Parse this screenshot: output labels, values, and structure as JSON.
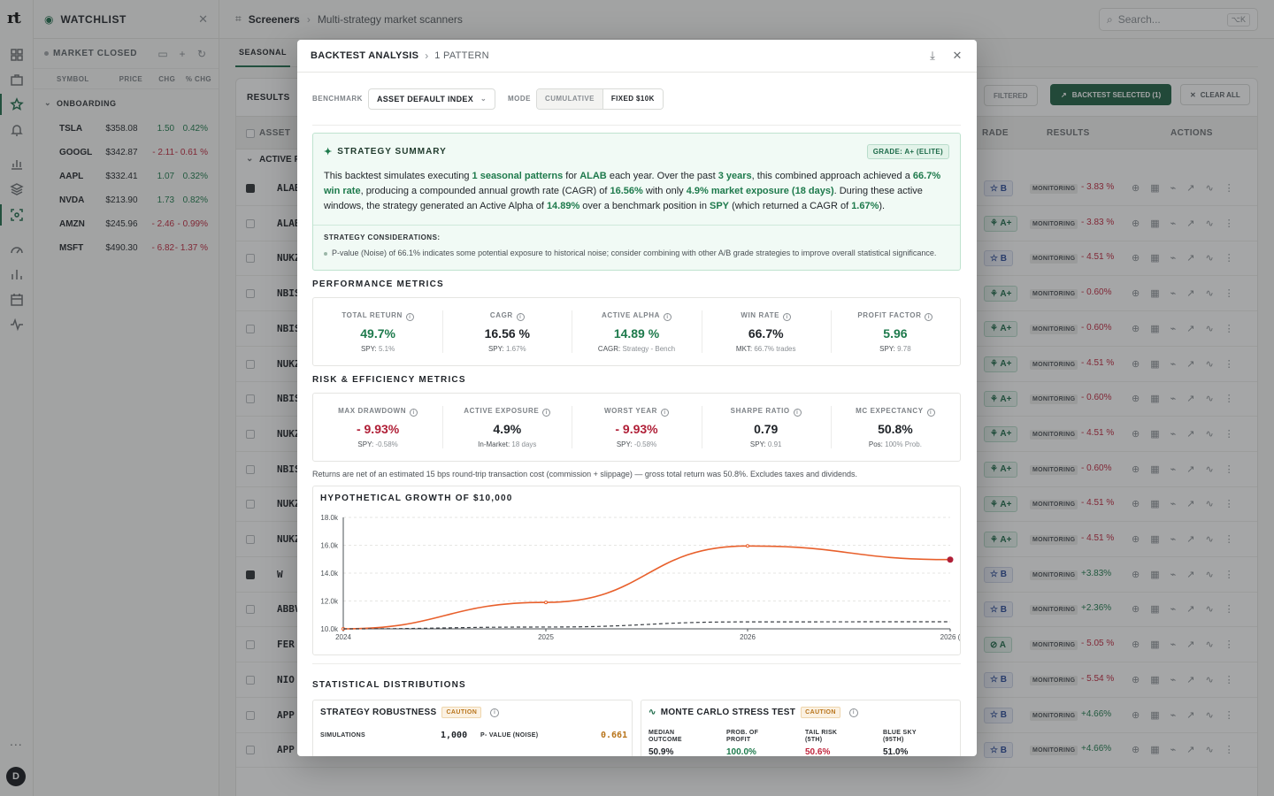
{
  "rail": {
    "logo": "rt",
    "avatar": "D",
    "more": "..."
  },
  "watchlist": {
    "title": "WATCHLIST",
    "status": "MARKET CLOSED",
    "columns": [
      "SYMBOL",
      "PRICE",
      "CHG",
      "% CHG"
    ],
    "group": "ONBOARDING",
    "rows": [
      {
        "symbol": "TSLA",
        "price": "$358.08",
        "chg": "1.50",
        "pct": "0.42%",
        "dir": "pos"
      },
      {
        "symbol": "GOOGL",
        "price": "$342.87",
        "chg": "- 2.11",
        "pct": "- 0.61 %",
        "dir": "neg"
      },
      {
        "symbol": "AAPL",
        "price": "$332.41",
        "chg": "1.07",
        "pct": "0.32%",
        "dir": "pos"
      },
      {
        "symbol": "NVDA",
        "price": "$213.90",
        "chg": "1.73",
        "pct": "0.82%",
        "dir": "pos"
      },
      {
        "symbol": "AMZN",
        "price": "$245.96",
        "chg": "- 2.46",
        "pct": "- 0.99%",
        "dir": "neg"
      },
      {
        "symbol": "MSFT",
        "price": "$490.30",
        "chg": "- 6.82",
        "pct": "- 1.37 %",
        "dir": "neg"
      }
    ]
  },
  "topbar": {
    "crumb1": "Screeners",
    "crumb2": "Multi-strategy market scanners",
    "search_placeholder": "Search...",
    "shortcut": "⌥K"
  },
  "main": {
    "tab": "SEASONAL",
    "results_label": "RESULTS",
    "filtered_label": "FILTERED",
    "backtest_label": "BACKTEST SELECTED (1)",
    "clear_label": "CLEAR ALL",
    "headers": {
      "asset": "ASSET",
      "grade": "RADE",
      "results": "RESULTS",
      "actions": "ACTIONS"
    },
    "group": "ACTIVE P",
    "rows": [
      {
        "ticker": "ALAB",
        "checked": true,
        "grade": "☆ B",
        "gtype": "b",
        "status": "MONITORING",
        "ret": "- 3.83 %",
        "dir": "neg"
      },
      {
        "ticker": "ALAB",
        "checked": false,
        "grade": "⚘ A+",
        "gtype": "a",
        "status": "MONITORING",
        "ret": "- 3.83 %",
        "dir": "neg"
      },
      {
        "ticker": "NUKZ",
        "checked": false,
        "grade": "☆ B",
        "gtype": "b",
        "status": "MONITORING",
        "ret": "- 4.51 %",
        "dir": "neg"
      },
      {
        "ticker": "NBIS",
        "checked": false,
        "grade": "⚘ A+",
        "gtype": "a",
        "status": "MONITORING",
        "ret": "- 0.60%",
        "dir": "neg"
      },
      {
        "ticker": "NBIS",
        "checked": false,
        "grade": "⚘ A+",
        "gtype": "a",
        "status": "MONITORING",
        "ret": "- 0.60%",
        "dir": "neg"
      },
      {
        "ticker": "NUKZ",
        "checked": false,
        "grade": "⚘ A+",
        "gtype": "a",
        "status": "MONITORING",
        "ret": "- 4.51 %",
        "dir": "neg"
      },
      {
        "ticker": "NBIS",
        "checked": false,
        "grade": "⚘ A+",
        "gtype": "a",
        "status": "MONITORING",
        "ret": "- 0.60%",
        "dir": "neg"
      },
      {
        "ticker": "NUKZ",
        "checked": false,
        "grade": "⚘ A+",
        "gtype": "a",
        "status": "MONITORING",
        "ret": "- 4.51 %",
        "dir": "neg"
      },
      {
        "ticker": "NBIS",
        "checked": false,
        "grade": "⚘ A+",
        "gtype": "a",
        "status": "MONITORING",
        "ret": "- 0.60%",
        "dir": "neg"
      },
      {
        "ticker": "NUKZ",
        "checked": false,
        "grade": "⚘ A+",
        "gtype": "a",
        "status": "MONITORING",
        "ret": "- 4.51 %",
        "dir": "neg"
      },
      {
        "ticker": "NUKZ",
        "checked": false,
        "grade": "⚘ A+",
        "gtype": "a",
        "status": "MONITORING",
        "ret": "- 4.51 %",
        "dir": "neg"
      },
      {
        "ticker": "W",
        "checked": true,
        "grade": "☆ B",
        "gtype": "b",
        "status": "MONITORING",
        "ret": "+3.83%",
        "dir": "pos"
      },
      {
        "ticker": "ABBV",
        "checked": false,
        "grade": "☆ B",
        "gtype": "b",
        "status": "MONITORING",
        "ret": "+2.36%",
        "dir": "pos"
      },
      {
        "ticker": "FER",
        "checked": false,
        "grade": "⊘ A",
        "gtype": "a",
        "status": "MONITORING",
        "ret": "- 5.05 %",
        "dir": "neg"
      },
      {
        "ticker": "NIO",
        "checked": false,
        "grade": "☆ B",
        "gtype": "b",
        "status": "MONITORING",
        "ret": "- 5.54 %",
        "dir": "neg"
      },
      {
        "ticker": "APP",
        "checked": false,
        "grade": "☆ B",
        "gtype": "b",
        "status": "MONITORING",
        "ret": "+4.66%",
        "dir": "pos"
      },
      {
        "ticker": "APP",
        "checked": false,
        "grade": "☆ B",
        "gtype": "b",
        "status": "MONITORING",
        "ret": "+4.66%",
        "dir": "pos"
      }
    ]
  },
  "modal": {
    "title": "BACKTEST ANALYSIS",
    "subtitle": "1 PATTERN",
    "benchmark_label": "BENCHMARK",
    "benchmark_value": "ASSET DEFAULT INDEX",
    "mode_label": "MODE",
    "mode_options": [
      "CUMULATIVE",
      "FIXED $10K"
    ],
    "summary": {
      "title": "STRATEGY SUMMARY",
      "grade": "GRADE: A+ (ELITE)",
      "t1": "This backtest simulates executing ",
      "b1": "1 seasonal patterns",
      "t2": " for ",
      "b2": "ALAB",
      "t3": " each year. Over the past ",
      "b3": "3 years",
      "t4": ", this combined approach achieved a ",
      "b4": "66.7% win rate",
      "t5": ", producing a compounded annual growth rate (CAGR) of ",
      "b5": "16.56%",
      "t6": " with only ",
      "b6": "4.9% market exposure (18 days)",
      "t7": ". During these active windows, the strategy generated an Active Alpha of ",
      "b7": "14.89%",
      "t8": " over a benchmark position in ",
      "b8": "SPY",
      "t9": " (which returned a CAGR of ",
      "b9": "1.67%",
      "t10": ").",
      "cons_title": "STRATEGY CONSIDERATIONS:",
      "cons_item": "P-value (Noise) of 66.1% indicates some potential exposure to historical noise; consider combining with other A/B grade strategies to improve overall statistical significance."
    },
    "perf_title": "PERFORMANCE METRICS",
    "perf": [
      {
        "label": "TOTAL RETURN",
        "value": "49.7%",
        "tone": "g",
        "sub_label": "SPY: ",
        "sub_val": "5.1%"
      },
      {
        "label": "CAGR",
        "value": "16.56 %",
        "tone": "k",
        "sub_label": "SPY: ",
        "sub_val": "1.67%"
      },
      {
        "label": "ACTIVE ALPHA",
        "value": "14.89 %",
        "tone": "g",
        "sub_label": "CAGR: ",
        "sub_val": "Strategy - Bench"
      },
      {
        "label": "WIN RATE",
        "value": "66.7%",
        "tone": "k",
        "sub_label": "MKT: ",
        "sub_val": "66.7% trades"
      },
      {
        "label": "PROFIT FACTOR",
        "value": "5.96",
        "tone": "g",
        "sub_label": "SPY: ",
        "sub_val": "9.78"
      }
    ],
    "risk_title": "RISK & EFFICIENCY METRICS",
    "risk": [
      {
        "label": "MAX DRAWDOWN",
        "value": "- 9.93%",
        "tone": "r",
        "sub_label": "SPY: ",
        "sub_val": "-0.58%"
      },
      {
        "label": "ACTIVE EXPOSURE",
        "value": "4.9%",
        "tone": "k",
        "sub_label": "In-Market: ",
        "sub_val": "18 days"
      },
      {
        "label": "WORST YEAR",
        "value": "- 9.93%",
        "tone": "r",
        "sub_label": "SPY: ",
        "sub_val": "-0.58%"
      },
      {
        "label": "SHARPE RATIO",
        "value": "0.79",
        "tone": "k",
        "sub_label": "SPY: ",
        "sub_val": "0.91"
      },
      {
        "label": "MC EXPECTANCY",
        "value": "50.8%",
        "tone": "k",
        "sub_label": "Pos: ",
        "sub_val": "100% Prob."
      }
    ],
    "note": "Returns are net of an estimated 15 bps round-trip transaction cost (commission + slippage) — gross total return was 50.8%. Excludes taxes and dividends.",
    "dist_title": "STATISTICAL DISTRIBUTIONS",
    "robustness": {
      "title": "STRATEGY ROBUSTNESS",
      "badge": "CAUTION",
      "k1": "SIMULATIONS",
      "v1": "1,000",
      "k2": "P- VALUE (NOISE)",
      "v2": "0.661"
    },
    "montecarlo": {
      "title": "MONTE CARLO STRESS TEST",
      "badge": "CAUTION",
      "cols": [
        "MEDIAN OUTCOME",
        "PROB. OF PROFIT",
        "TAIL RISK (5TH)",
        "BLUE SKY (95TH)"
      ],
      "vals": [
        "50.9%",
        "100.0%",
        "50.6%",
        "51.0%"
      ]
    }
  },
  "chart_data": {
    "type": "line",
    "title": "HYPOTHETICAL GROWTH OF $10,000",
    "x_ticks": [
      "2024",
      "2025",
      "2026",
      "2026 ("
    ],
    "y_ticks": [
      "10.0k",
      "12.0k",
      "14.0k",
      "16.0k",
      "18.0k"
    ],
    "ylim": [
      10000,
      18000
    ],
    "grid": true,
    "series": [
      {
        "values": [
          10000,
          11900,
          15950,
          14970
        ],
        "color": "#e8602c",
        "style": "solid"
      },
      {
        "values": [
          10000,
          10130,
          10500,
          10510
        ],
        "color": "#3a3f44",
        "style": "dashed"
      }
    ]
  }
}
